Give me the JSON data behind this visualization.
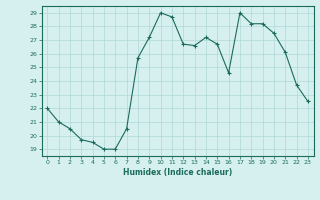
{
  "x": [
    0,
    1,
    2,
    3,
    4,
    5,
    6,
    7,
    8,
    9,
    10,
    11,
    12,
    13,
    14,
    15,
    16,
    17,
    18,
    19,
    20,
    21,
    22,
    23
  ],
  "y": [
    22,
    21,
    20.5,
    19.7,
    19.5,
    19.0,
    19.0,
    20.5,
    25.7,
    27.2,
    29.0,
    28.7,
    26.7,
    26.6,
    27.2,
    26.7,
    24.6,
    29.0,
    28.2,
    28.2,
    27.5,
    26.1,
    23.7,
    22.5
  ],
  "line_color": "#1a6b5a",
  "bg_color": "#d6f0f0",
  "grid_color": "#b0d8d8",
  "xlabel": "Humidex (Indice chaleur)",
  "ylabel_ticks": [
    19,
    20,
    21,
    22,
    23,
    24,
    25,
    26,
    27,
    28,
    29
  ],
  "xlim": [
    -0.5,
    23.5
  ],
  "ylim": [
    18.5,
    29.5
  ],
  "tick_color": "#1a6b5a",
  "spine_color": "#1a6b5a"
}
